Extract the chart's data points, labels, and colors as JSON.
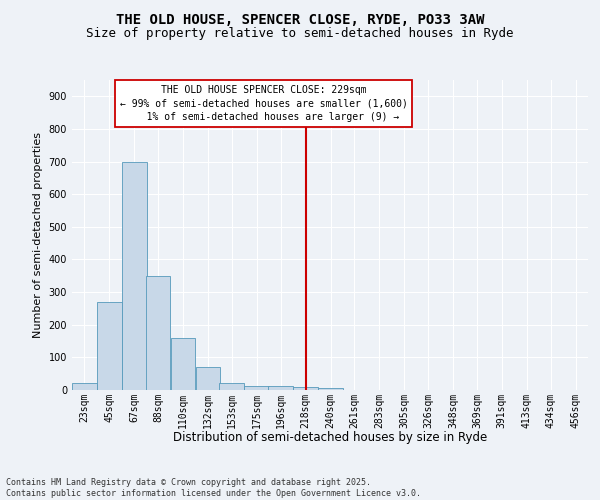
{
  "title": "THE OLD HOUSE, SPENCER CLOSE, RYDE, PO33 3AW",
  "subtitle": "Size of property relative to semi-detached houses in Ryde",
  "xlabel": "Distribution of semi-detached houses by size in Ryde",
  "ylabel": "Number of semi-detached properties",
  "bin_labels": [
    "23sqm",
    "45sqm",
    "67sqm",
    "88sqm",
    "110sqm",
    "132sqm",
    "153sqm",
    "175sqm",
    "196sqm",
    "218sqm",
    "240sqm",
    "261sqm",
    "283sqm",
    "305sqm",
    "326sqm",
    "348sqm",
    "369sqm",
    "391sqm",
    "413sqm",
    "434sqm",
    "456sqm"
  ],
  "bin_edges": [
    23,
    45,
    67,
    88,
    110,
    132,
    153,
    175,
    196,
    218,
    240,
    261,
    283,
    305,
    326,
    348,
    369,
    391,
    413,
    434,
    456
  ],
  "bar_heights": [
    20,
    270,
    700,
    350,
    158,
    70,
    22,
    12,
    12,
    8,
    5,
    0,
    0,
    0,
    0,
    0,
    0,
    0,
    0,
    0
  ],
  "bar_color": "#c8d8e8",
  "bar_edge_color": "#5599bb",
  "vertical_line_x": 229,
  "vertical_line_color": "#cc0000",
  "annotation_line1": "THE OLD HOUSE SPENCER CLOSE: 229sqm",
  "annotation_line2": "← 99% of semi-detached houses are smaller (1,600)",
  "annotation_line3": "1% of semi-detached houses are larger (9) →",
  "annotation_box_color": "#cc0000",
  "annotation_fill": "#ffffff",
  "ylim": [
    0,
    950
  ],
  "yticks": [
    0,
    100,
    200,
    300,
    400,
    500,
    600,
    700,
    800,
    900
  ],
  "background_color": "#eef2f7",
  "grid_color": "#ffffff",
  "footer": "Contains HM Land Registry data © Crown copyright and database right 2025.\nContains public sector information licensed under the Open Government Licence v3.0.",
  "title_fontsize": 10,
  "subtitle_fontsize": 9,
  "xlabel_fontsize": 8.5,
  "ylabel_fontsize": 8,
  "tick_fontsize": 7,
  "annotation_fontsize": 7,
  "footer_fontsize": 6
}
